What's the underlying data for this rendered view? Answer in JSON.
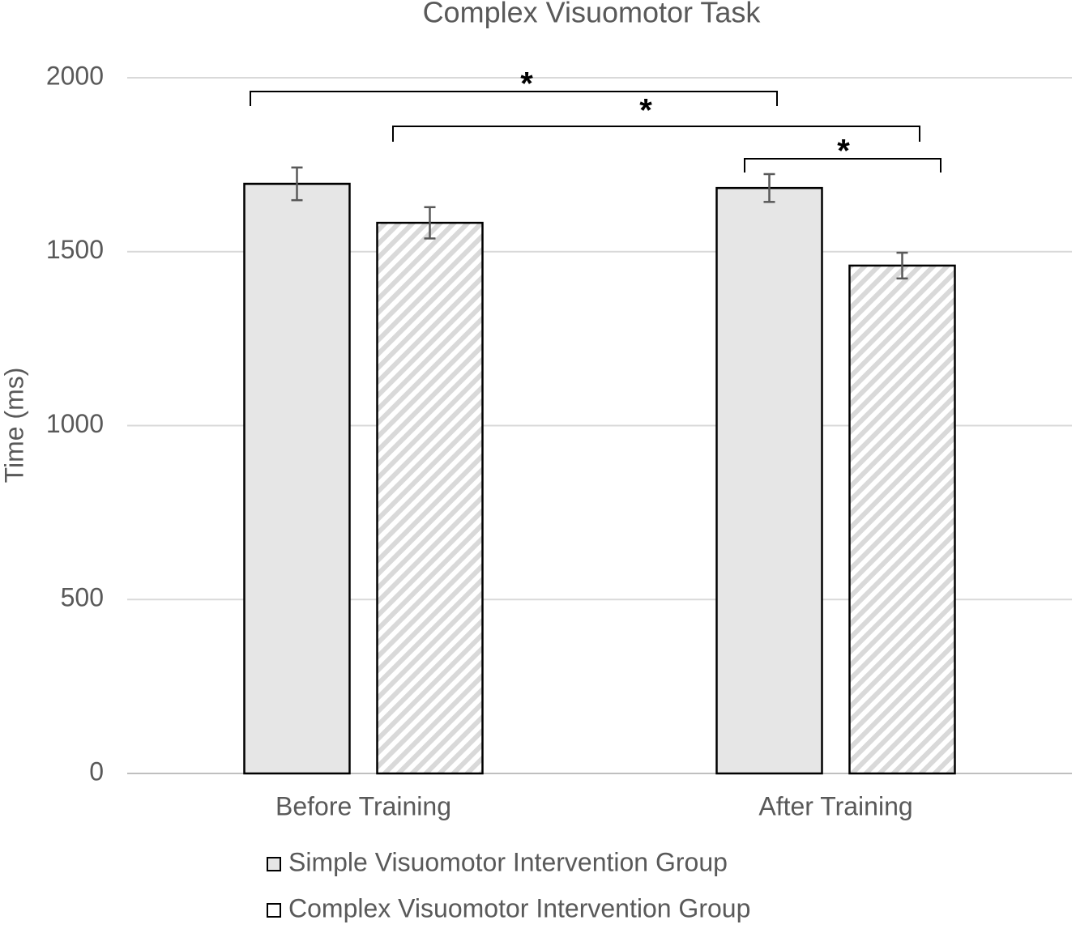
{
  "chart_data": {
    "type": "bar",
    "title": "Complex Visuomotor Task",
    "y_label": "Time (ms)",
    "categories": [
      "Before Training",
      "After Training"
    ],
    "series": [
      {
        "name": "Simple Visuomotor Intervention Group",
        "color": "#e6e6e6",
        "pattern": "solid",
        "values": [
          1695,
          1683
        ],
        "errors": [
          47,
          40
        ]
      },
      {
        "name": "Complex Visuomotor Intervention Group",
        "color": "#d9d9d9",
        "pattern": "hatch",
        "values": [
          1583,
          1460
        ],
        "errors": [
          45,
          37
        ]
      }
    ],
    "ylim": [
      0,
      2000
    ],
    "yticks": [
      0,
      500,
      1000,
      1500,
      2000
    ],
    "grid": true,
    "annotations": [
      "*",
      "*",
      "*"
    ]
  }
}
